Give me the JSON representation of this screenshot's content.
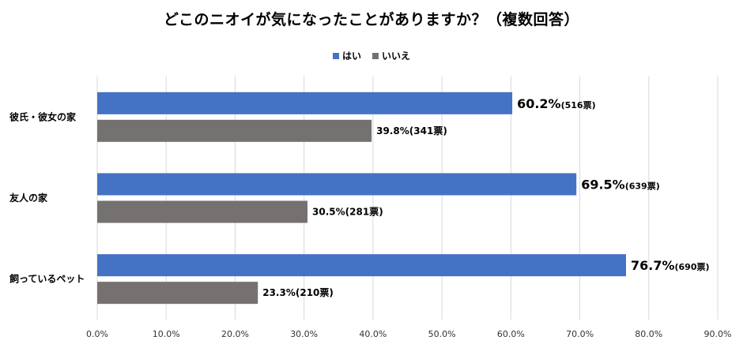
{
  "chart_data": {
    "type": "bar",
    "orientation": "horizontal",
    "title": "どこのニオイが気になったことがありますか？（複数回答）",
    "categories": [
      "彼氏・彼女の家",
      "友人の家",
      "飼っているペット"
    ],
    "series": [
      {
        "name": "はい",
        "color": "#4472C4",
        "values": [
          60.2,
          69.5,
          76.7
        ],
        "value_labels": [
          "60.2%",
          "69.5%",
          "76.7%"
        ],
        "vote_labels": [
          "(516票)",
          "(639票)",
          "(690票)"
        ]
      },
      {
        "name": "いいえ",
        "color": "#767171",
        "values": [
          39.8,
          30.5,
          23.3
        ],
        "value_labels": [
          "39.8%",
          "30.5%",
          "23.3%"
        ],
        "vote_labels": [
          "(341票)",
          "(281票)",
          "(210票)"
        ]
      }
    ],
    "x_ticks": [
      "0.0%",
      "10.0%",
      "20.0%",
      "30.0%",
      "40.0%",
      "50.0%",
      "60.0%",
      "70.0%",
      "80.0%",
      "90.0%"
    ],
    "xlim": [
      0,
      90
    ],
    "grid": true,
    "legend_position": "top-center"
  }
}
